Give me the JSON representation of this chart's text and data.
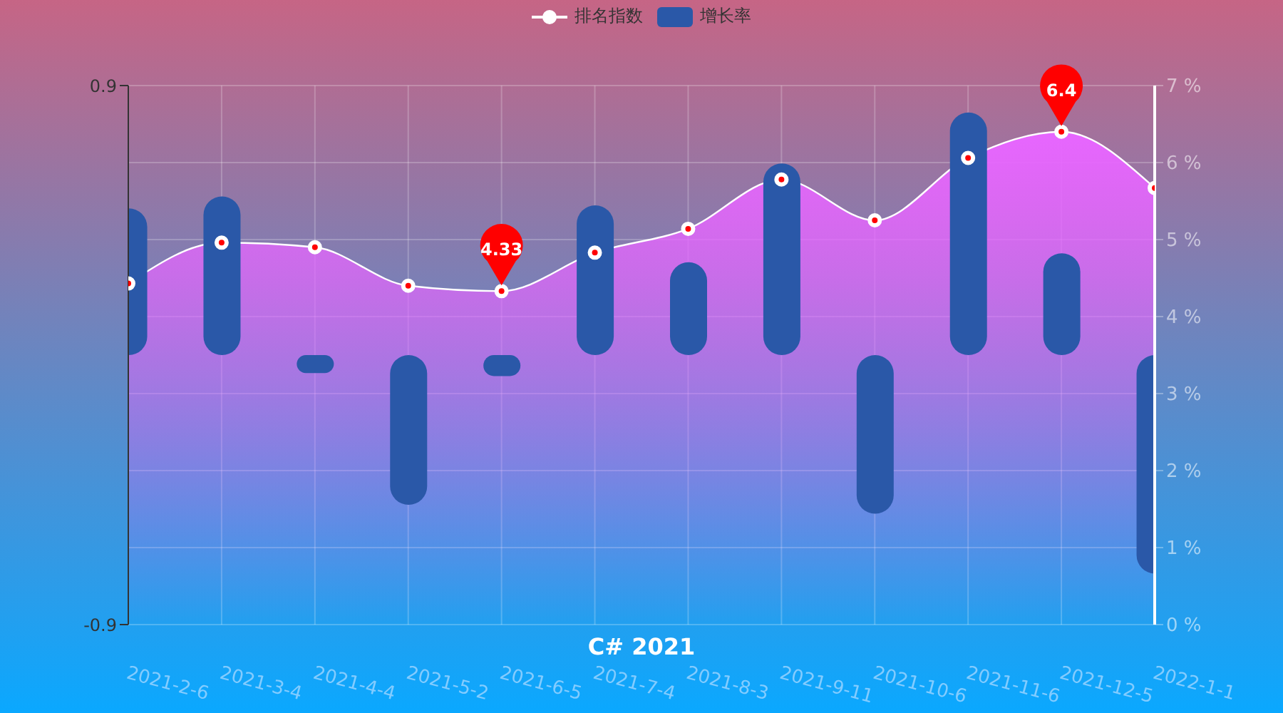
{
  "chart_data": {
    "type": "bar",
    "title": "C# 2021",
    "categories": [
      "2021-2-6",
      "2021-3-4",
      "2021-4-4",
      "2021-5-2",
      "2021-6-5",
      "2021-7-4",
      "2021-8-3",
      "2021-9-11",
      "2021-10-6",
      "2021-11-6",
      "2021-12-5",
      "2022-1-1"
    ],
    "series": [
      {
        "name": "排名指数",
        "type": "area",
        "axis": "y2",
        "color": "#ffffff",
        "values": [
          4.43,
          4.96,
          4.9,
          4.4,
          4.33,
          4.83,
          5.14,
          5.78,
          5.25,
          6.06,
          6.4,
          5.67
        ]
      },
      {
        "name": "增长率",
        "color": "#2a58a8",
        "values": [
          0.49,
          0.53,
          -0.06,
          -0.5,
          -0.07,
          0.5,
          0.31,
          0.64,
          -0.53,
          0.81,
          0.34,
          -0.73
        ]
      }
    ],
    "ylim": [
      -0.9,
      0.9
    ],
    "yticks": [
      -0.9,
      0.9
    ],
    "y2lim": [
      0,
      7
    ],
    "y2ticks": [
      {
        "value": 0,
        "label": "0 %"
      },
      {
        "value": 1,
        "label": "1 %"
      },
      {
        "value": 2,
        "label": "2 %"
      },
      {
        "value": 3,
        "label": "3 %"
      },
      {
        "value": 4,
        "label": "4 %"
      },
      {
        "value": 5,
        "label": "5 %"
      },
      {
        "value": 6,
        "label": "6 %"
      },
      {
        "value": 7,
        "label": "7 %"
      }
    ],
    "grid": true,
    "legend": "top",
    "marker": "circle",
    "annotations": [
      "6.4",
      "4.33"
    ]
  }
}
